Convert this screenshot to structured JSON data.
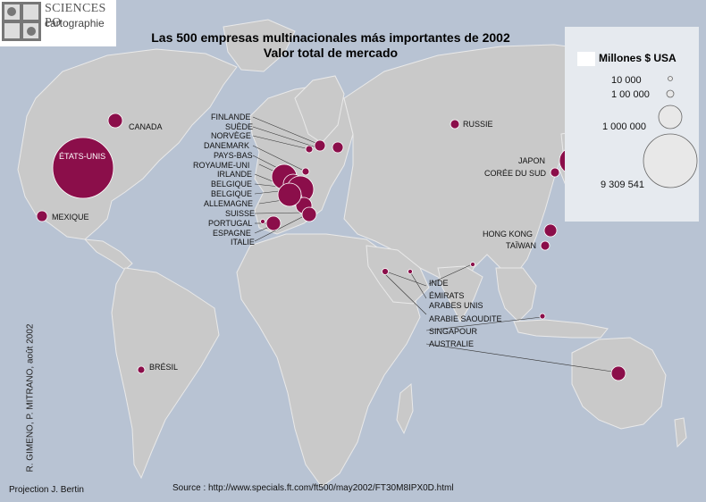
{
  "logo": {
    "name": "SCIENCES PO",
    "sub": "cartographie"
  },
  "title": {
    "line1": "Las 500 empresas multinacionales más importantes de 2002",
    "line2": "Valor total de mercado"
  },
  "legend": {
    "title": "Millones $ USA",
    "items": [
      {
        "label": "10 000",
        "value": 10000
      },
      {
        "label": "1 00 000",
        "value": 100000
      },
      {
        "label": "1 000 000",
        "value": 1000000
      },
      {
        "label": "9 309 541",
        "value": 9309541
      }
    ]
  },
  "countries": {
    "etats_unis": "ÉTATS-UNIS",
    "canada": "CANADA",
    "mexique": "MEXIQUE",
    "bresil": "BRÉSIL",
    "russie": "RUSSIE",
    "japon": "JAPON",
    "coree": "CORÉE DU SUD",
    "hongkong": "HONG KONG",
    "taiwan": "TAÏWAN",
    "inde": "INDE",
    "emirats": "ÉMIRATS",
    "arabes_unis": "ARABES UNIS",
    "arabie": "ARABIE SAOUDITE",
    "singapour": "SINGAPOUR",
    "australie": "AUSTRALIE",
    "finlande": "FINLANDE",
    "suede": "SUÈDE",
    "norvege": "NORVÈGE",
    "danemark": "DANEMARK",
    "pays_bas": "PAYS-BAS",
    "royaume_uni": "ROYAUME-UNI",
    "irlande": "IRLANDE",
    "belgique1": "BELGIQUE",
    "belgique2": "BELGIQUE",
    "allemagne": "ALLEMAGNE",
    "suisse": "SUISSE",
    "portugal": "PORTUGAL",
    "espagne": "ESPAGNE",
    "italie": "ITALIE"
  },
  "credit": "R. GIMENO, P. MITRANO, août 2002",
  "projection": "Projection J. Bertin",
  "source": "Source : http://www.specials.ft.com/ft500/may2002/FT30M8IPX0D.html",
  "colors": {
    "ocean": "#b8c3d3",
    "land": "#c8c8c8",
    "bubble": "#8b0e4a",
    "legend_bg": "#e6eaef"
  }
}
